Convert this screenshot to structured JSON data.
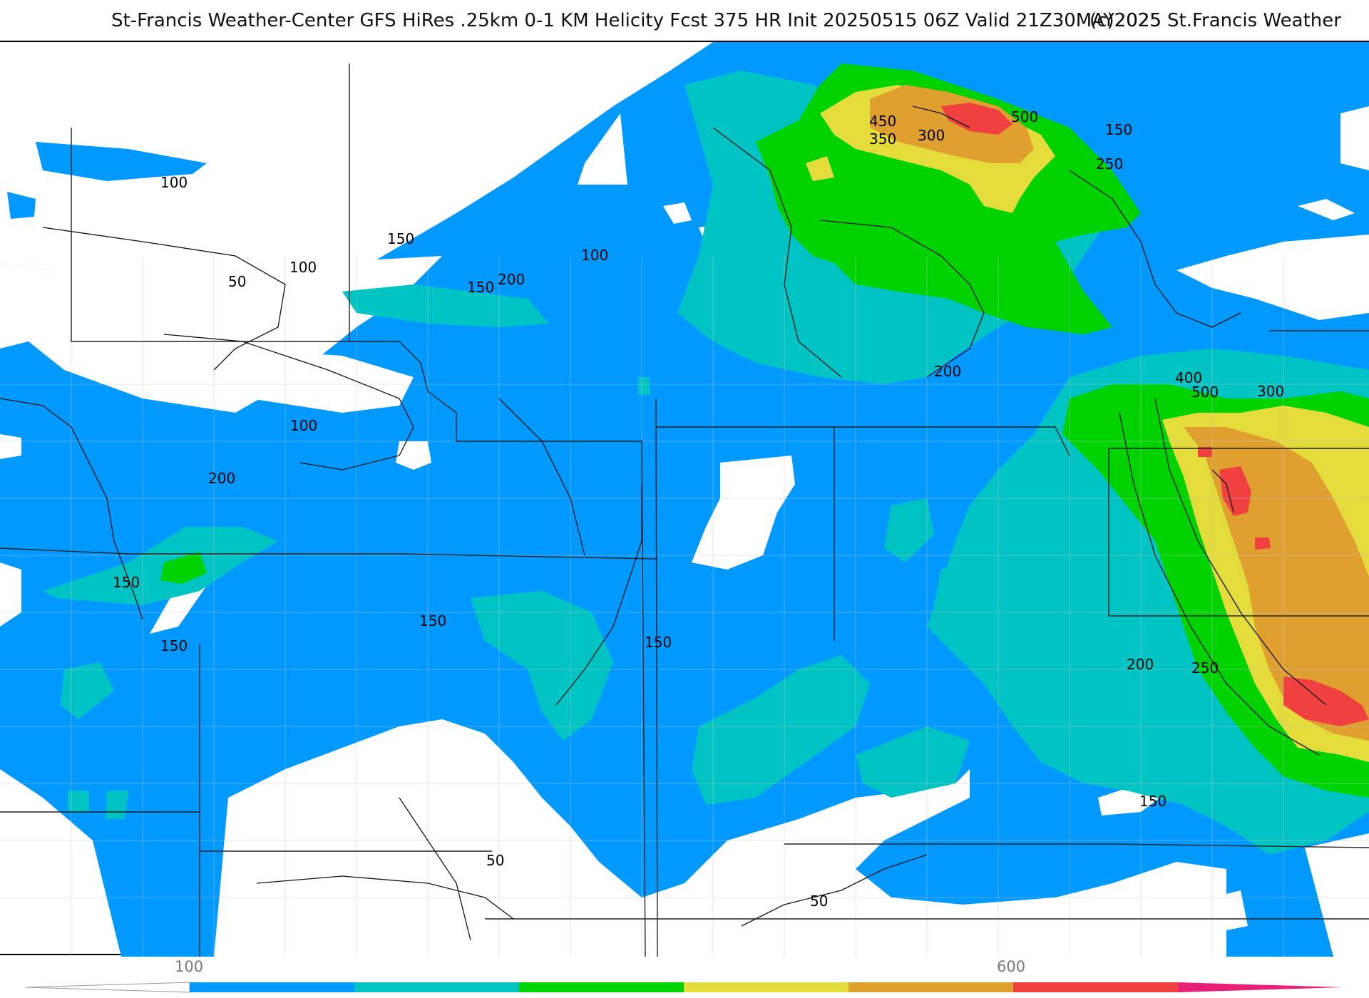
{
  "header": {
    "title": "St-Francis Weather-Center GFS HiRes .25km 0-1 KM Helicity Fcst 375 HR Init 20250515 06Z  Valid 21Z30MAY2025",
    "copyright": "(c)2025 St.Francis Weather"
  },
  "colors": {
    "c100": "#0099ff",
    "c200": "#00c4c4",
    "c300": "#00d200",
    "c400": "#e3dc3a",
    "c500": "#e0a030",
    "c600": "#f04040",
    "c700": "#e8207a"
  },
  "contour_labels": [
    "100",
    "150",
    "150",
    "100",
    "50",
    "200",
    "150",
    "100",
    "100",
    "200",
    "150",
    "150",
    "150",
    "150",
    "150",
    "450",
    "350",
    "300",
    "500",
    "150",
    "250",
    "200",
    "400",
    "500",
    "300",
    "200",
    "250",
    "150",
    "50",
    "50"
  ],
  "colorbar": {
    "tick_labels": [
      "100",
      "600"
    ]
  }
}
